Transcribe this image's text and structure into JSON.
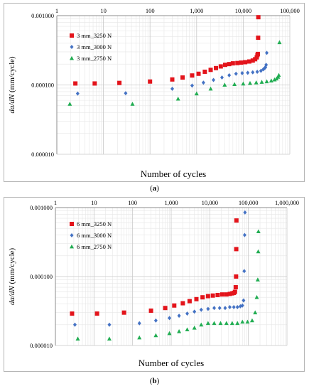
{
  "chart_data": [
    {
      "type": "scatter",
      "panel_label": "a",
      "xlabel": "Number of cycles",
      "ylabel": "da/dN (mm/cycle)",
      "x_scale": "log",
      "y_scale": "log",
      "xlim": [
        1,
        100000
      ],
      "ylim": [
        1e-05,
        0.001
      ],
      "x_ticks": [
        1,
        10,
        100,
        1000,
        10000,
        100000
      ],
      "x_tick_labels": [
        "1",
        "10",
        "100",
        "1,000",
        "10,000",
        "100,000"
      ],
      "y_ticks": [
        1e-05,
        0.0001,
        0.001
      ],
      "y_tick_labels": [
        "0.000010",
        "0.000100",
        "0.001000"
      ],
      "grid": true,
      "legend_position": "upper-left",
      "series": [
        {
          "name": "3 mm_3250 N",
          "color": "#e3141b",
          "marker": "square",
          "x": [
            2.5,
            6.5,
            22,
            100,
            300,
            500,
            800,
            1100,
            1500,
            2000,
            2600,
            3300,
            4100,
            5000,
            6000,
            7500,
            9000,
            11000,
            13500,
            16000,
            18000,
            19500,
            20200,
            20600,
            20900,
            21100
          ],
          "y": [
            0.000105,
            0.000105,
            0.000107,
            0.000112,
            0.00012,
            0.000128,
            0.000137,
            0.000145,
            0.000155,
            0.000165,
            0.000175,
            0.000185,
            0.000195,
            0.0002,
            0.000205,
            0.000207,
            0.00021,
            0.000213,
            0.000218,
            0.000225,
            0.000235,
            0.00025,
            0.00027,
            0.00028,
            0.00048,
            0.00095
          ]
        },
        {
          "name": "3 mm_3000 N",
          "color": "#4472c4",
          "marker": "diamond",
          "x": [
            2.8,
            30,
            300,
            800,
            1400,
            2300,
            3500,
            5000,
            7000,
            9500,
            12500,
            16000,
            20000,
            24000,
            27000,
            29000,
            30000,
            31000,
            32000
          ],
          "y": [
            7.5e-05,
            7.6e-05,
            8.8e-05,
            9.8e-05,
            0.000108,
            0.000118,
            0.000128,
            0.000138,
            0.000145,
            0.000148,
            0.00015,
            0.000152,
            0.000155,
            0.00016,
            0.000168,
            0.000175,
            0.00018,
            0.000195,
            0.00029
          ]
        },
        {
          "name": "3 mm_2750 N",
          "color": "#21ad52",
          "marker": "triangle",
          "x": [
            1.9,
            42,
            400,
            1000,
            2000,
            4000,
            6500,
            10000,
            14000,
            19000,
            25000,
            32000,
            40000,
            47000,
            52000,
            56000,
            58000,
            60000
          ],
          "y": [
            5.3e-05,
            5.3e-05,
            6.3e-05,
            7.5e-05,
            8.8e-05,
            0.0001,
            0.000102,
            0.000104,
            0.000106,
            0.000108,
            0.00011,
            0.000112,
            0.000115,
            0.000119,
            0.000123,
            0.00013,
            0.000138,
            0.00041
          ]
        }
      ]
    },
    {
      "type": "scatter",
      "panel_label": "b",
      "xlabel": "Number of cycles",
      "ylabel": "da/dN (mm/cycle)",
      "x_scale": "log",
      "y_scale": "log",
      "xlim": [
        1,
        1000000
      ],
      "ylim": [
        1e-05,
        0.001
      ],
      "x_ticks": [
        1,
        10,
        100,
        1000,
        10000,
        100000,
        1000000
      ],
      "x_tick_labels": [
        "1",
        "10",
        "100",
        "1,000",
        "10,000",
        "100,000",
        "1,000,000"
      ],
      "y_ticks": [
        1e-05,
        0.0001,
        0.001
      ],
      "y_tick_labels": [
        "0.000010",
        "0.000100",
        "0.001000"
      ],
      "grid": true,
      "legend_position": "upper-left",
      "series": [
        {
          "name": "6 mm_3250 N",
          "color": "#e3141b",
          "marker": "square",
          "x": [
            2.7,
            12,
            60,
            300,
            700,
            1200,
            2000,
            3000,
            4500,
            6500,
            9000,
            12000,
            16000,
            21000,
            27000,
            33000,
            38000,
            42000,
            45000,
            47000,
            48000,
            48500,
            49000
          ],
          "y": [
            2.9e-05,
            2.9e-05,
            3e-05,
            3.2e-05,
            3.5e-05,
            3.8e-05,
            4.1e-05,
            4.4e-05,
            4.7e-05,
            5e-05,
            5.2e-05,
            5.3e-05,
            5.4e-05,
            5.5e-05,
            5.5e-05,
            5.6e-05,
            5.7e-05,
            5.8e-05,
            6e-05,
            7e-05,
            0.0001,
            0.00025,
            0.00065
          ]
        },
        {
          "name": "6 mm_3000 N",
          "color": "#4472c4",
          "marker": "diamond",
          "x": [
            3.2,
            25,
            150,
            400,
            900,
            1600,
            2600,
            4000,
            6000,
            9000,
            13000,
            18000,
            25000,
            33000,
            42000,
            52000,
            62000,
            70000,
            75000,
            78000,
            80000,
            81500
          ],
          "y": [
            2e-05,
            2e-05,
            2.1e-05,
            2.3e-05,
            2.5e-05,
            2.7e-05,
            2.9e-05,
            3.1e-05,
            3.3e-05,
            3.4e-05,
            3.5e-05,
            3.5e-05,
            3.5e-05,
            3.6e-05,
            3.6e-05,
            3.6e-05,
            3.7e-05,
            3.8e-05,
            4.5e-05,
            0.00012,
            0.0004,
            0.00085
          ]
        },
        {
          "name": "6 mm_2750 N",
          "color": "#21ad52",
          "marker": "triangle",
          "x": [
            3.8,
            25,
            150,
            400,
            900,
            1600,
            2600,
            4000,
            6000,
            9000,
            13000,
            19000,
            27000,
            38000,
            52000,
            70000,
            95000,
            125000,
            150000,
            165000,
            175000,
            180000,
            182000
          ],
          "y": [
            1.25e-05,
            1.25e-05,
            1.3e-05,
            1.4e-05,
            1.5e-05,
            1.6e-05,
            1.7e-05,
            1.8e-05,
            2e-05,
            2.1e-05,
            2.1e-05,
            2.1e-05,
            2.1e-05,
            2.1e-05,
            2.1e-05,
            2.2e-05,
            2.2e-05,
            2.3e-05,
            3e-05,
            5e-05,
            9e-05,
            0.00023,
            0.00045
          ]
        }
      ]
    }
  ]
}
